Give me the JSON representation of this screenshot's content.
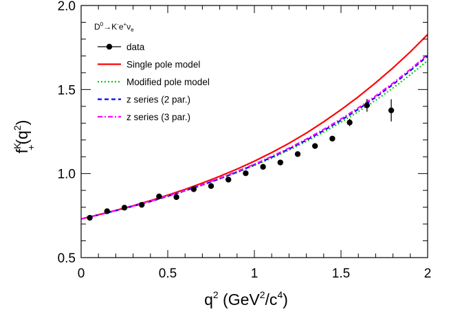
{
  "chart_data": {
    "type": "scatter",
    "process": {
      "base": "D",
      "base_sup": "0",
      "arrow": "→",
      "k": "K",
      "k_sup": "-",
      "e": "e",
      "e_sup": "+",
      "nu": "ν",
      "nu_sub": "e"
    },
    "xlabel": {
      "q": "q",
      "q_sup": "2",
      "open": " (GeV",
      "gev_sup": "2",
      "slash": "/c",
      "c_sup": "4",
      "close": ")"
    },
    "ylabel": {
      "f": "f",
      "f_sup": "K",
      "f_sub": "+",
      "open": "(q",
      "q_sup": "2",
      "close": ")"
    },
    "xlim": [
      0,
      2
    ],
    "ylim": [
      0.5,
      2.0
    ],
    "x_ticks": [
      {
        "value": 0,
        "label": "0"
      },
      {
        "value": 0.5,
        "label": "0.5"
      },
      {
        "value": 1,
        "label": "1"
      },
      {
        "value": 1.5,
        "label": "1.5"
      },
      {
        "value": 2,
        "label": "2"
      }
    ],
    "y_ticks": [
      {
        "value": 0.5,
        "label": "0.5"
      },
      {
        "value": 1.0,
        "label": "1.0"
      },
      {
        "value": 1.5,
        "label": "1.5"
      },
      {
        "value": 2.0,
        "label": "2.0"
      }
    ],
    "legend_placement": "top-left",
    "data": {
      "name": "data",
      "color": "#000000",
      "points": [
        {
          "x": 0.05,
          "y": 0.737,
          "err": 0.01
        },
        {
          "x": 0.15,
          "y": 0.776,
          "err": 0.01
        },
        {
          "x": 0.25,
          "y": 0.797,
          "err": 0.01
        },
        {
          "x": 0.35,
          "y": 0.814,
          "err": 0.01
        },
        {
          "x": 0.45,
          "y": 0.864,
          "err": 0.01
        },
        {
          "x": 0.55,
          "y": 0.86,
          "err": 0.01
        },
        {
          "x": 0.65,
          "y": 0.907,
          "err": 0.01
        },
        {
          "x": 0.75,
          "y": 0.926,
          "err": 0.01
        },
        {
          "x": 0.85,
          "y": 0.964,
          "err": 0.01
        },
        {
          "x": 0.95,
          "y": 1.002,
          "err": 0.01
        },
        {
          "x": 1.05,
          "y": 1.04,
          "err": 0.012
        },
        {
          "x": 1.15,
          "y": 1.066,
          "err": 0.012
        },
        {
          "x": 1.25,
          "y": 1.116,
          "err": 0.013
        },
        {
          "x": 1.35,
          "y": 1.164,
          "err": 0.014
        },
        {
          "x": 1.45,
          "y": 1.208,
          "err": 0.016
        },
        {
          "x": 1.55,
          "y": 1.304,
          "err": 0.022
        },
        {
          "x": 1.65,
          "y": 1.406,
          "err": 0.038
        },
        {
          "x": 1.79,
          "y": 1.376,
          "err": 0.066
        }
      ]
    },
    "series": [
      {
        "name": "Single pole model",
        "color": "#ff0000",
        "dash": "solid",
        "x": [
          0,
          0.1,
          0.2,
          0.3,
          0.4,
          0.5,
          0.6,
          0.7,
          0.8,
          0.9,
          1.0,
          1.1,
          1.2,
          1.3,
          1.4,
          1.5,
          1.6,
          1.7,
          1.8,
          1.9,
          2.0
        ],
        "y": [
          0.73,
          0.755,
          0.781,
          0.809,
          0.839,
          0.872,
          0.906,
          0.944,
          0.984,
          1.027,
          1.074,
          1.125,
          1.18,
          1.241,
          1.308,
          1.38,
          1.457,
          1.54,
          1.629,
          1.724,
          1.827
        ]
      },
      {
        "name": "Modified pole model",
        "color": "#00cc00",
        "dash": "dotted",
        "x": [
          0,
          0.1,
          0.2,
          0.3,
          0.4,
          0.5,
          0.6,
          0.7,
          0.8,
          0.9,
          1.0,
          1.1,
          1.2,
          1.3,
          1.4,
          1.5,
          1.6,
          1.7,
          1.8,
          1.9,
          2.0
        ],
        "y": [
          0.73,
          0.754,
          0.779,
          0.806,
          0.834,
          0.864,
          0.897,
          0.931,
          0.968,
          1.006,
          1.048,
          1.092,
          1.14,
          1.191,
          1.246,
          1.305,
          1.368,
          1.436,
          1.509,
          1.588,
          1.672
        ]
      },
      {
        "name": "z series (2 par.)",
        "color": "#0000ff",
        "dash": "dashed",
        "x": [
          0,
          0.1,
          0.2,
          0.3,
          0.4,
          0.5,
          0.6,
          0.7,
          0.8,
          0.9,
          1.0,
          1.1,
          1.2,
          1.3,
          1.4,
          1.5,
          1.6,
          1.7,
          1.8,
          1.9,
          2.0
        ],
        "y": [
          0.73,
          0.754,
          0.779,
          0.806,
          0.834,
          0.865,
          0.898,
          0.933,
          0.97,
          1.009,
          1.052,
          1.097,
          1.146,
          1.199,
          1.256,
          1.317,
          1.383,
          1.454,
          1.53,
          1.612,
          1.7
        ]
      },
      {
        "name": "z series (3 par.)",
        "color": "#ff00ff",
        "dash": "dashdot",
        "x": [
          0,
          0.1,
          0.2,
          0.3,
          0.4,
          0.5,
          0.6,
          0.7,
          0.8,
          0.9,
          1.0,
          1.1,
          1.2,
          1.3,
          1.4,
          1.5,
          1.6,
          1.7,
          1.8,
          1.9,
          2.0
        ],
        "y": [
          0.73,
          0.754,
          0.78,
          0.807,
          0.836,
          0.867,
          0.9,
          0.935,
          0.973,
          1.013,
          1.056,
          1.102,
          1.152,
          1.205,
          1.263,
          1.325,
          1.391,
          1.462,
          1.538,
          1.62,
          1.708
        ]
      }
    ],
    "grid": false
  }
}
